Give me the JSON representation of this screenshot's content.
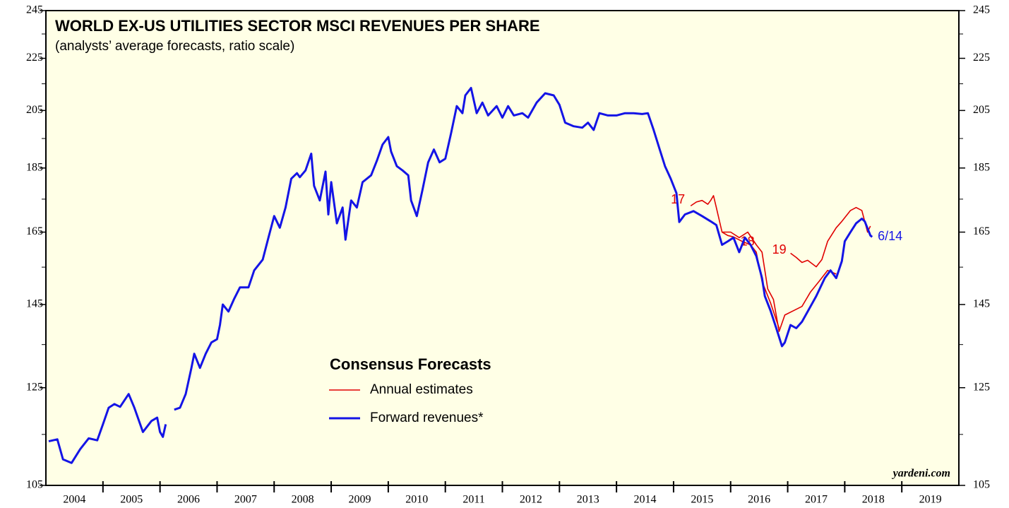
{
  "chart_data": {
    "type": "line",
    "title": "WORLD EX-US UTILITIES SECTOR MSCI REVENUES PER SHARE",
    "subtitle": "(analysts’ average forecasts, ratio scale)",
    "source": "yardeni.com",
    "log_scale": true,
    "ylim": [
      105,
      245
    ],
    "yticks": [
      105,
      125,
      145,
      165,
      185,
      205,
      225,
      245
    ],
    "minor_yticks": [
      115,
      135,
      155,
      175,
      195,
      215,
      235
    ],
    "xlim": [
      2004,
      2020
    ],
    "xticks": [
      2005,
      2006,
      2007,
      2008,
      2009,
      2010,
      2011,
      2012,
      2013,
      2014,
      2015,
      2016,
      2017,
      2018,
      2019
    ],
    "categories": [
      "2004",
      "2005",
      "2006",
      "2007",
      "2008",
      "2009",
      "2010",
      "2011",
      "2012",
      "2013",
      "2014",
      "2015",
      "2016",
      "2017",
      "2018",
      "2019"
    ],
    "legend_title": "Consensus Forecasts",
    "end_label": "6/14",
    "series": [
      {
        "name": "Annual estimates",
        "color": "#e00000",
        "lines": [
          {
            "label": "17",
            "x": [
              2015.3,
              2015.4,
              2015.5,
              2015.6,
              2015.65,
              2015.7,
              2015.75,
              2015.85,
              2015.95,
              2016.05,
              2016.2,
              2016.35,
              2016.45,
              2016.55,
              2016.7,
              2016.85
            ],
            "values": [
              172.9,
              174.1,
              174.6,
              173.4,
              174.6,
              176.1,
              172.4,
              165,
              164,
              163.6,
              162.3,
              161.3,
              159.2,
              151.1,
              145.4,
              139
            ]
          },
          {
            "label": "18",
            "x": [
              2015.85,
              2016.0,
              2016.15,
              2016.3,
              2016.45,
              2016.55,
              2016.65,
              2016.75,
              2016.85,
              2016.95,
              2017.1,
              2017.25,
              2017.4,
              2017.55,
              2017.7,
              2017.85
            ],
            "values": [
              165,
              165,
              163.4,
              165,
              161.3,
              159.2,
              149.1,
              146.3,
              138.2,
              142.3,
              143.4,
              144.5,
              148.3,
              151.1,
              154.1,
              153.1
            ]
          },
          {
            "label": "19",
            "x": [
              2017.05,
              2017.15,
              2017.25,
              2017.35,
              2017.5,
              2017.6,
              2017.7,
              2017.85,
              2017.95,
              2018.1,
              2018.2,
              2018.3,
              2018.4,
              2018.45
            ],
            "values": [
              158.9,
              157.7,
              156.3,
              156.9,
              155.1,
              157.1,
              162.3,
              166.3,
              168.2,
              171.5,
              172.4,
              171.5,
              165,
              166.8
            ]
          }
        ]
      },
      {
        "name": "Forward revenues*",
        "color": "#1414e6",
        "x": [
          2004.05,
          2004.2,
          2004.3,
          2004.45,
          2004.6,
          2004.75,
          2004.9,
          2005.0,
          2005.1,
          2005.2,
          2005.3,
          2005.45,
          2005.55,
          2005.7,
          2005.85,
          2005.95,
          2006.0,
          2006.05,
          2006.1,
          2006.15,
          2006.25,
          2006.35,
          2006.45,
          2006.55,
          2006.6,
          2006.7,
          2006.8,
          2006.9,
          2007.0,
          2007.05,
          2007.1,
          2007.2,
          2007.3,
          2007.4,
          2007.55,
          2007.65,
          2007.8,
          2007.9,
          2008.0,
          2008.1,
          2008.2,
          2008.3,
          2008.4,
          2008.45,
          2008.55,
          2008.65,
          2008.7,
          2008.8,
          2008.9,
          2008.95,
          2009.0,
          2009.1,
          2009.2,
          2009.25,
          2009.35,
          2009.45,
          2009.55,
          2009.7,
          2009.8,
          2009.9,
          2010.0,
          2010.05,
          2010.15,
          2010.25,
          2010.35,
          2010.4,
          2010.5,
          2010.6,
          2010.7,
          2010.8,
          2010.9,
          2011.0,
          2011.1,
          2011.2,
          2011.3,
          2011.35,
          2011.45,
          2011.55,
          2011.65,
          2011.75,
          2011.9,
          2012.0,
          2012.1,
          2012.2,
          2012.35,
          2012.45,
          2012.6,
          2012.75,
          2012.9,
          2013.0,
          2013.1,
          2013.25,
          2013.4,
          2013.5,
          2013.6,
          2013.7,
          2013.85,
          2014.0,
          2014.15,
          2014.3,
          2014.45,
          2014.55,
          2014.65,
          2014.75,
          2014.85,
          2014.95,
          2015.05,
          2015.1,
          2015.2,
          2015.35,
          2015.5,
          2015.65,
          2015.75,
          2015.85,
          2015.95,
          2016.05,
          2016.15,
          2016.25,
          2016.35,
          2016.45,
          2016.55,
          2016.6,
          2016.7,
          2016.8,
          2016.9,
          2016.95,
          2017.05,
          2017.15,
          2017.25,
          2017.4,
          2017.5,
          2017.65,
          2017.75,
          2017.85,
          2017.95,
          2018.0,
          2018.1,
          2018.2,
          2018.3,
          2018.35,
          2018.45,
          2018.48
        ],
        "values": [
          113.6,
          114,
          110,
          109.3,
          112,
          114.2,
          113.8,
          117.1,
          120.6,
          121.4,
          120.8,
          123.6,
          120.6,
          115.5,
          117.8,
          118.5,
          115.5,
          114.5,
          117.1,
          null,
          120.2,
          120.6,
          123.6,
          129.5,
          132.8,
          129.5,
          132.8,
          135.5,
          136.3,
          139.8,
          145,
          143.2,
          146.5,
          149.5,
          149.5,
          154.1,
          157.1,
          163.4,
          169.8,
          166.3,
          172.4,
          181.5,
          183.3,
          182,
          184.2,
          189.8,
          179.2,
          174.6,
          183.8,
          170.3,
          180.4,
          167.6,
          172.4,
          162.8,
          174.6,
          172.4,
          180.4,
          182.6,
          187.4,
          192.9,
          195.5,
          190.5,
          185.6,
          184.2,
          182.6,
          174.6,
          169.8,
          178,
          186.9,
          191.2,
          186.9,
          188.1,
          196.8,
          206.6,
          204,
          210.6,
          213.4,
          204,
          207.9,
          203.2,
          206.6,
          202.4,
          206.6,
          203.2,
          204,
          202.4,
          207.9,
          211.4,
          210.6,
          207.1,
          200.6,
          199.3,
          198.8,
          200.6,
          198,
          204,
          203.2,
          203.2,
          204,
          204,
          203.7,
          204,
          198,
          191.7,
          185.6,
          181.5,
          176.9,
          168,
          170.3,
          171.3,
          169.8,
          168.2,
          167.1,
          161.3,
          162.3,
          163.4,
          159.2,
          163.4,
          161.3,
          158.1,
          152,
          147.2,
          143.4,
          139,
          134.6,
          135.5,
          139.8,
          139,
          140.6,
          144.5,
          147.2,
          152,
          154.1,
          152,
          156.7,
          162.3,
          165,
          167.6,
          169,
          168.2,
          164,
          163.6
        ]
      }
    ]
  }
}
